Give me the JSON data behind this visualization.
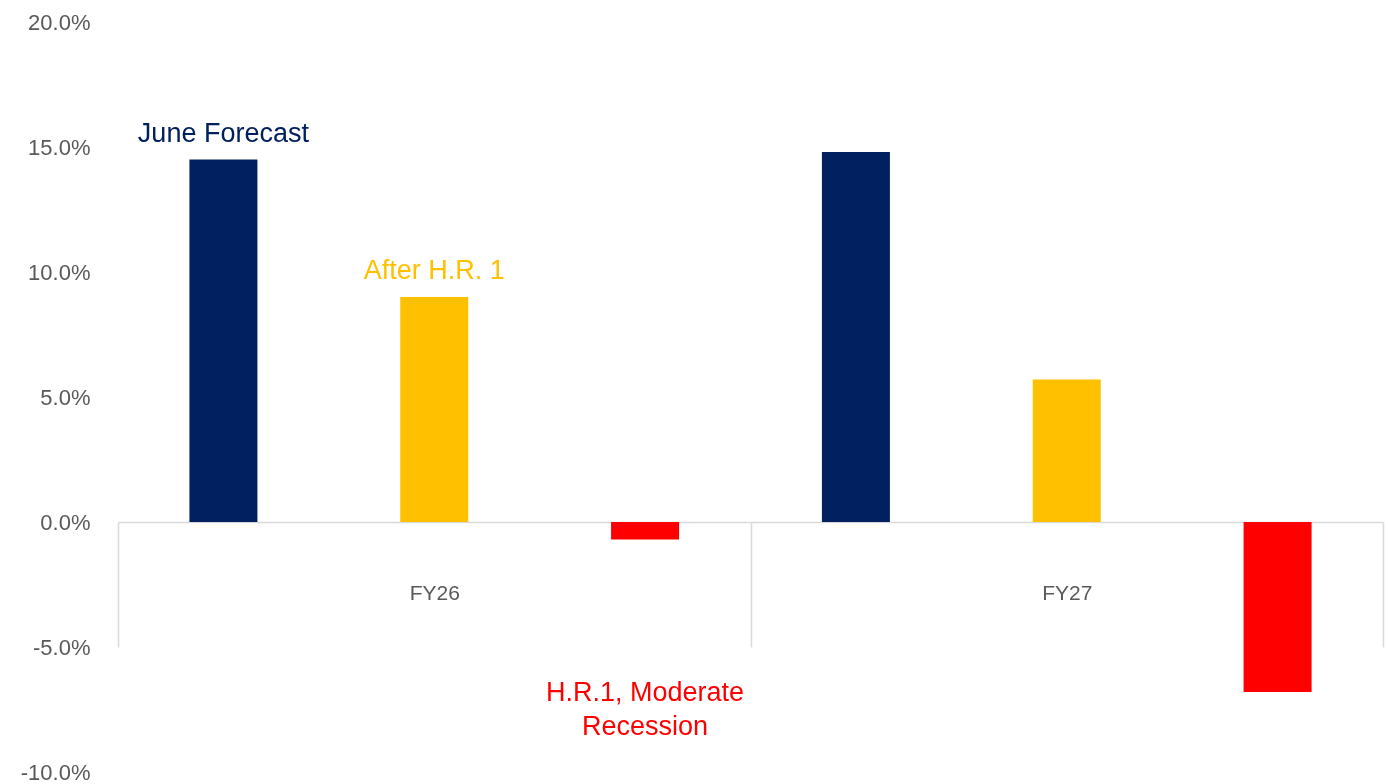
{
  "chart_data": {
    "type": "bar",
    "categories": [
      "FY26",
      "FY27"
    ],
    "series": [
      {
        "name": "June Forecast",
        "color": "#002060",
        "values": [
          14.5,
          14.8
        ]
      },
      {
        "name": "After H.R. 1",
        "color": "#ffc000",
        "values": [
          9.0,
          5.7
        ]
      },
      {
        "name": "H.R.1, Moderate Recession",
        "color": "#ff0000",
        "values": [
          -0.7,
          -6.8
        ]
      }
    ],
    "ylim": [
      -10,
      20
    ],
    "yticks": [
      {
        "value": -10,
        "label": "-10.0%"
      },
      {
        "value": -5,
        "label": "-5.0%"
      },
      {
        "value": 0,
        "label": "0.0%"
      },
      {
        "value": 5,
        "label": "5.0%"
      },
      {
        "value": 10,
        "label": "10.0%"
      },
      {
        "value": 15,
        "label": "15.0%"
      },
      {
        "value": 20,
        "label": "20.0%"
      }
    ],
    "legend": false
  }
}
